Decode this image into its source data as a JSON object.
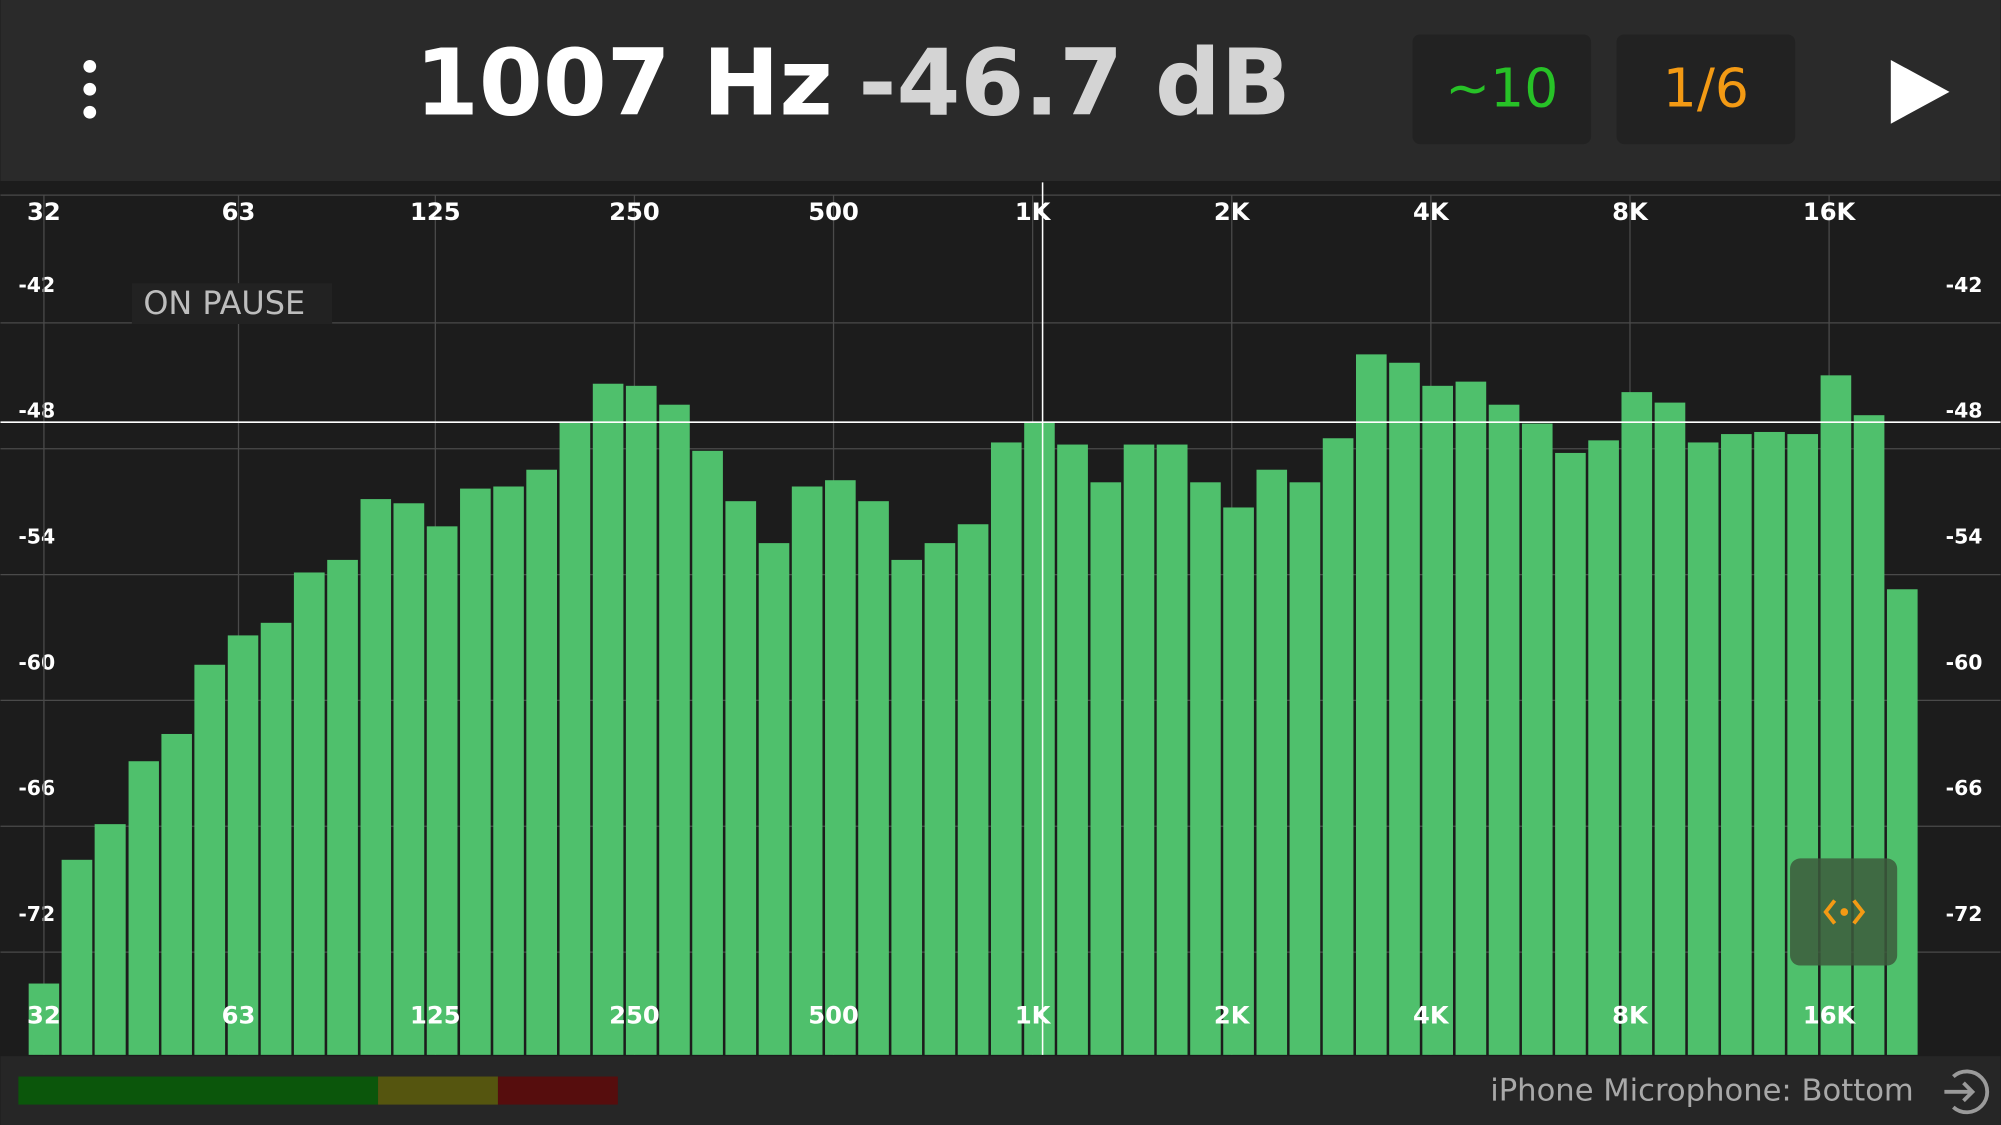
{
  "header": {
    "frequency": "1007 Hz",
    "level": "-46.7 dB",
    "averaging": "~10",
    "resolution": "1/6"
  },
  "status": "ON PAUSE",
  "input_device": "iPhone Microphone: Bottom",
  "chart_data": {
    "type": "bar",
    "log_x": true,
    "grid": true,
    "color": "#4fc06c",
    "x": [
      32,
      35.9,
      40.3,
      45.3,
      50.8,
      57.0,
      64,
      71.8,
      80.6,
      90.5,
      101.6,
      114.0,
      128,
      143.7,
      161.3,
      181.0,
      203.2,
      228.1,
      256,
      287.4,
      322.5,
      362.0,
      406.4,
      456.1,
      512,
      574.7,
      645.1,
      724.1,
      812.7,
      912.3,
      1024,
      1149,
      1290,
      1448,
      1625,
      1825,
      2048,
      2299,
      2580,
      2896,
      3251,
      3649,
      4096,
      4598,
      5161,
      5793,
      6502,
      7298,
      8192,
      9195,
      10321,
      11585,
      13004,
      14596,
      16384,
      18390,
      20643
    ],
    "values": [
      -73.5,
      -67.6,
      -65.9,
      -62.9,
      -61.6,
      -58.3,
      -56.9,
      -56.3,
      -53.9,
      -53.3,
      -50.4,
      -50.6,
      -51.7,
      -49.9,
      -49.8,
      -49.0,
      -46.7,
      -44.9,
      -45.0,
      -45.9,
      -48.1,
      -50.5,
      -52.5,
      -49.8,
      -49.5,
      -50.5,
      -53.3,
      -52.5,
      -51.6,
      -47.7,
      -46.7,
      -47.8,
      -49.6,
      -47.8,
      -47.8,
      -49.6,
      -50.8,
      -49.0,
      -49.6,
      -47.5,
      -43.5,
      -43.9,
      -45.0,
      -44.8,
      -45.9,
      -46.8,
      -48.2,
      -47.6,
      -45.3,
      -45.8,
      -47.7,
      -47.3,
      -47.2,
      -47.3,
      -44.5,
      -46.4,
      -54.7
    ],
    "xlim": [
      30.2,
      21870
    ],
    "xticks": [
      32,
      63,
      125,
      250,
      500,
      {
        "value": 1000,
        "label": "1K"
      },
      {
        "value": 2000,
        "label": "2K"
      },
      {
        "value": 4000,
        "label": "4K"
      },
      {
        "value": 8000,
        "label": "8K"
      },
      {
        "value": 16000,
        "label": "16K"
      }
    ],
    "ylim": [
      -76.9,
      -35.3
    ],
    "yticks": [
      -72,
      -66,
      -60,
      -54,
      -48,
      -42
    ]
  }
}
